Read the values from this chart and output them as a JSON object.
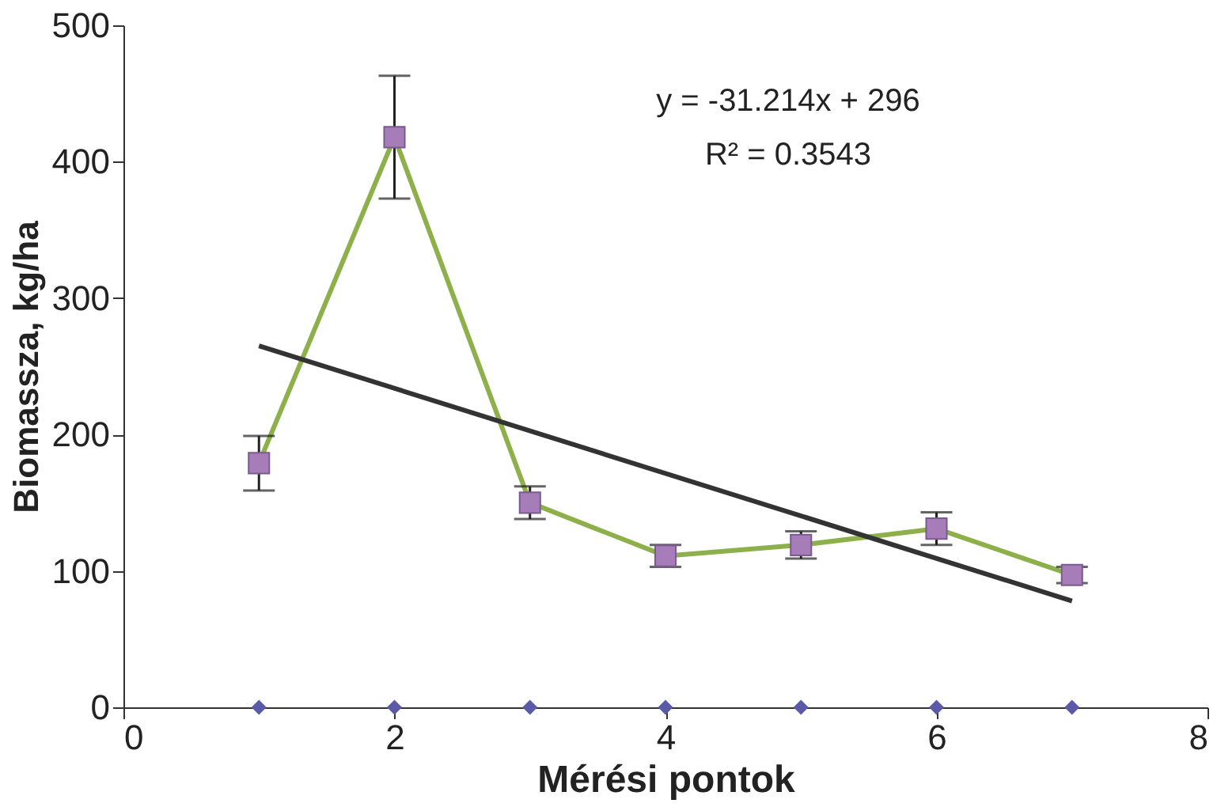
{
  "chart_data": {
    "type": "line",
    "xlabel": "Mérési pontok",
    "ylabel": "Biomassza, kg/ha",
    "xlim": [
      0,
      8
    ],
    "xticks": [
      0,
      2,
      4,
      6,
      8
    ],
    "ylim": [
      0,
      500
    ],
    "yticks": [
      0,
      100,
      200,
      300,
      400,
      500
    ],
    "grid": false,
    "series": [
      {
        "color": "#8db04a",
        "colors": [
          "#a67db8",
          "#a67db8",
          "#a67db8",
          "#a67db8",
          "#a67db8",
          "#a67db8",
          "#a67db8"
        ],
        "marker": "square",
        "line_style": "solid",
        "x": [
          1,
          2,
          3,
          4,
          5,
          6,
          7
        ],
        "values": [
          179,
          418,
          150,
          111,
          119,
          131,
          97
        ],
        "errors": [
          20,
          45,
          12,
          8,
          10,
          12,
          6
        ]
      },
      {
        "color": "#333333",
        "marker": "none",
        "line_style": "solid",
        "x": [
          1,
          7
        ],
        "values": [
          265,
          78
        ]
      },
      {
        "type": "scatter",
        "color": "#5a5aa8",
        "marker": "diamond",
        "x": [
          1,
          2,
          3,
          4,
          5,
          6,
          7
        ],
        "values": [
          0,
          0,
          0,
          0,
          0,
          0,
          0
        ]
      }
    ],
    "annotations": [
      "y = -31.214x + 296",
      "R² = 0.3543"
    ]
  }
}
